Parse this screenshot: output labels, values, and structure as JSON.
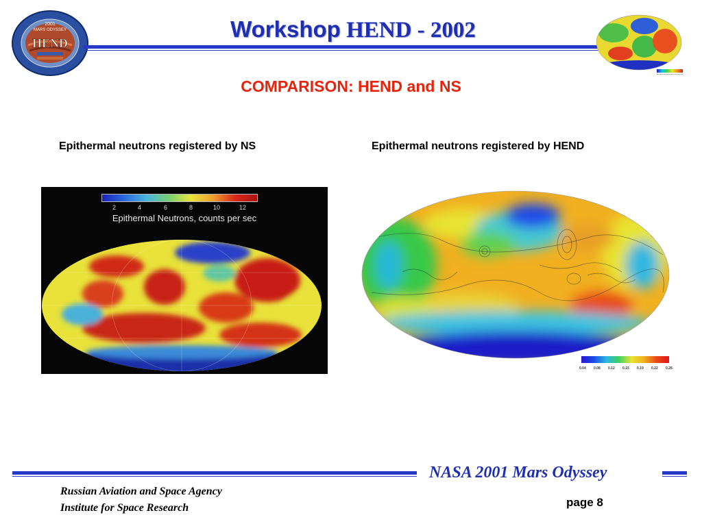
{
  "header": {
    "title_word": "Workshop",
    "title_rest": "HEND - 2002",
    "logo_lines": [
      "2001",
      "MARS ODYSSEY",
      "HEND"
    ]
  },
  "subtitle": "COMPARISON: HEND and NS",
  "panels": {
    "left_caption": "Epithermal neutrons registered by NS",
    "right_caption": "Epithermal neutrons registered by HEND",
    "ns_legend": {
      "ticks": [
        "2",
        "4",
        "6",
        "8",
        "10",
        "12"
      ],
      "label": "Epithermal Neutrons, counts per sec"
    },
    "hend_legend": {
      "ticks": [
        "0.04",
        "0.08",
        "0.12",
        "0.15",
        "0.19",
        "0.22",
        "0.26"
      ]
    }
  },
  "footer": {
    "mission": "NASA 2001 Mars Odyssey",
    "agency_line1": "Russian Aviation and Space Agency",
    "agency_line2": "Institute for Space Research",
    "page": "page 8"
  },
  "colors": {
    "accent_blue": "#2638c8",
    "title_blue": "#1f2fb3",
    "subtitle_red": "#e8230b"
  }
}
